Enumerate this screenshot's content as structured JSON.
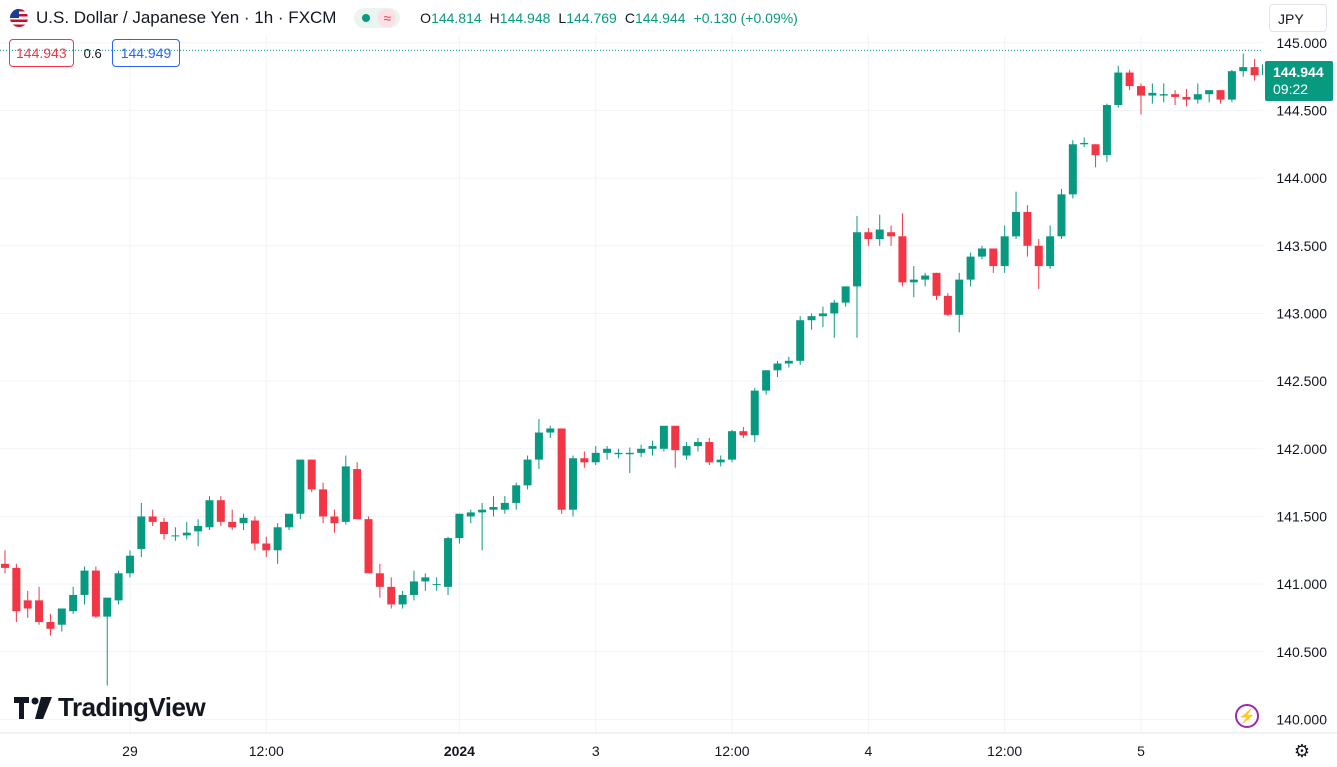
{
  "header": {
    "title": "U.S. Dollar / Japanese Yen · 1h · FXCM",
    "ohlc": [
      {
        "k": "O",
        "v": "144.814"
      },
      {
        "k": "H",
        "v": "144.948"
      },
      {
        "k": "L",
        "v": "144.769"
      },
      {
        "k": "C",
        "v": "144.944"
      },
      {
        "k": "",
        "v": "+0.130 (+0.09%)"
      }
    ],
    "status_symbol": "≈"
  },
  "quote": {
    "bid": "144.943",
    "spread": "0.6",
    "ask": "144.949"
  },
  "currency": "JPY",
  "last_price": {
    "price": "144.944",
    "countdown": "09:22"
  },
  "branding": {
    "logo_text": "TradingView"
  },
  "colors": {
    "up": "#089981",
    "down": "#f23645",
    "grid": "#f0f3fa",
    "text": "#131722"
  },
  "icons": {
    "bolt": "lightning-icon",
    "settings": "gear-icon"
  },
  "chart_data": {
    "type": "candlestick",
    "y_axis": {
      "min": 139.9,
      "max": 145.05,
      "ticks": [
        140.0,
        140.5,
        141.0,
        141.5,
        142.0,
        142.5,
        143.0,
        143.5,
        144.0,
        144.5,
        145.0
      ],
      "tick_labels": [
        "140.000",
        "140.500",
        "141.000",
        "141.500",
        "142.000",
        "142.500",
        "143.000",
        "143.500",
        "144.000",
        "144.500",
        "145.000"
      ]
    },
    "x_axis": {
      "labels": [
        {
          "bar": 11,
          "label": "29",
          "bold": false
        },
        {
          "bar": 23,
          "label": "12:00",
          "bold": false
        },
        {
          "bar": 40,
          "label": "2024",
          "bold": true
        },
        {
          "bar": 52,
          "label": "3",
          "bold": false
        },
        {
          "bar": 64,
          "label": "12:00",
          "bold": false
        },
        {
          "bar": 76,
          "label": "4",
          "bold": false
        },
        {
          "bar": 88,
          "label": "12:00",
          "bold": false
        },
        {
          "bar": 100,
          "label": "5",
          "bold": false
        }
      ]
    },
    "candles": [
      [
        141.15,
        141.25,
        141.08,
        141.12
      ],
      [
        141.12,
        141.15,
        140.72,
        140.8
      ],
      [
        140.88,
        140.95,
        140.75,
        140.82
      ],
      [
        140.88,
        140.98,
        140.7,
        140.72
      ],
      [
        140.72,
        140.78,
        140.62,
        140.67
      ],
      [
        140.7,
        140.82,
        140.65,
        140.82
      ],
      [
        140.8,
        140.98,
        140.78,
        140.92
      ],
      [
        140.92,
        141.13,
        140.85,
        141.1
      ],
      [
        141.1,
        141.13,
        140.75,
        140.76
      ],
      [
        140.76,
        140.9,
        140.25,
        140.9
      ],
      [
        140.88,
        141.1,
        140.85,
        141.08
      ],
      [
        141.08,
        141.25,
        141.05,
        141.21
      ],
      [
        141.26,
        141.6,
        141.2,
        141.5
      ],
      [
        141.5,
        141.55,
        141.43,
        141.46
      ],
      [
        141.46,
        141.49,
        141.33,
        141.37
      ],
      [
        141.36,
        141.42,
        141.32,
        141.36
      ],
      [
        141.36,
        141.46,
        141.33,
        141.38
      ],
      [
        141.39,
        141.48,
        141.28,
        141.43
      ],
      [
        141.42,
        141.65,
        141.4,
        141.62
      ],
      [
        141.62,
        141.65,
        141.43,
        141.46
      ],
      [
        141.46,
        141.55,
        141.4,
        141.42
      ],
      [
        141.45,
        141.52,
        141.4,
        141.49
      ],
      [
        141.47,
        141.5,
        141.25,
        141.3
      ],
      [
        141.3,
        141.35,
        141.2,
        141.25
      ],
      [
        141.25,
        141.45,
        141.15,
        141.42
      ],
      [
        141.42,
        141.52,
        141.4,
        141.52
      ],
      [
        141.52,
        141.92,
        141.48,
        141.92
      ],
      [
        141.92,
        141.92,
        141.68,
        141.7
      ],
      [
        141.7,
        141.75,
        141.45,
        141.5
      ],
      [
        141.5,
        141.55,
        141.38,
        141.45
      ],
      [
        141.46,
        141.95,
        141.44,
        141.87
      ],
      [
        141.85,
        141.9,
        141.48,
        141.48
      ],
      [
        141.48,
        141.5,
        141.1,
        141.08
      ],
      [
        141.08,
        141.15,
        140.9,
        140.98
      ],
      [
        140.98,
        141.05,
        140.82,
        140.85
      ],
      [
        140.85,
        140.95,
        140.82,
        140.92
      ],
      [
        140.92,
        141.1,
        140.88,
        141.02
      ],
      [
        141.02,
        141.08,
        140.95,
        141.05
      ],
      [
        141.0,
        141.05,
        140.95,
        141.0
      ],
      [
        140.98,
        141.35,
        140.92,
        141.34
      ],
      [
        141.34,
        141.52,
        141.3,
        141.52
      ],
      [
        141.5,
        141.55,
        141.45,
        141.53
      ],
      [
        141.53,
        141.6,
        141.25,
        141.55
      ],
      [
        141.55,
        141.65,
        141.5,
        141.57
      ],
      [
        141.55,
        141.65,
        141.52,
        141.6
      ],
      [
        141.6,
        141.75,
        141.55,
        141.73
      ],
      [
        141.73,
        141.95,
        141.7,
        141.92
      ],
      [
        141.92,
        142.22,
        141.85,
        142.12
      ],
      [
        142.12,
        142.17,
        142.08,
        142.15
      ],
      [
        142.15,
        142.15,
        141.52,
        141.55
      ],
      [
        141.55,
        141.95,
        141.5,
        141.93
      ],
      [
        141.93,
        141.98,
        141.86,
        141.9
      ],
      [
        141.9,
        142.02,
        141.88,
        141.97
      ],
      [
        141.97,
        142.02,
        141.92,
        142.0
      ],
      [
        141.96,
        142.0,
        141.93,
        141.97
      ],
      [
        141.96,
        142.01,
        141.82,
        141.97
      ],
      [
        141.97,
        142.03,
        141.94,
        142.0
      ],
      [
        142.0,
        142.06,
        141.95,
        142.02
      ],
      [
        142.0,
        142.16,
        141.98,
        142.17
      ],
      [
        142.17,
        142.17,
        141.86,
        141.99
      ],
      [
        141.95,
        142.05,
        141.92,
        142.02
      ],
      [
        142.02,
        142.08,
        141.98,
        142.05
      ],
      [
        142.05,
        142.08,
        141.88,
        141.9
      ],
      [
        141.9,
        141.95,
        141.87,
        141.92
      ],
      [
        141.92,
        142.14,
        141.9,
        142.13
      ],
      [
        142.13,
        142.16,
        142.08,
        142.1
      ],
      [
        142.1,
        142.45,
        142.05,
        142.43
      ],
      [
        142.43,
        142.58,
        142.4,
        142.58
      ],
      [
        142.58,
        142.65,
        142.53,
        142.63
      ],
      [
        142.63,
        142.68,
        142.6,
        142.65
      ],
      [
        142.65,
        142.98,
        142.62,
        142.95
      ],
      [
        142.95,
        143.0,
        142.88,
        142.98
      ],
      [
        142.98,
        143.05,
        142.9,
        143.0
      ],
      [
        143.0,
        143.1,
        142.82,
        143.08
      ],
      [
        143.08,
        143.2,
        143.05,
        143.2
      ],
      [
        143.2,
        143.72,
        142.82,
        143.6
      ],
      [
        143.6,
        143.63,
        143.5,
        143.55
      ],
      [
        143.55,
        143.73,
        143.5,
        143.62
      ],
      [
        143.6,
        143.65,
        143.5,
        143.57
      ],
      [
        143.57,
        143.74,
        143.2,
        143.23
      ],
      [
        143.23,
        143.35,
        143.12,
        143.25
      ],
      [
        143.25,
        143.3,
        143.2,
        143.28
      ],
      [
        143.3,
        143.3,
        143.1,
        143.13
      ],
      [
        143.13,
        143.15,
        142.98,
        142.99
      ],
      [
        142.99,
        143.3,
        142.86,
        143.25
      ],
      [
        143.25,
        143.45,
        143.2,
        143.42
      ],
      [
        143.42,
        143.5,
        143.4,
        143.48
      ],
      [
        143.48,
        143.48,
        143.3,
        143.35
      ],
      [
        143.35,
        143.65,
        143.3,
        143.57
      ],
      [
        143.57,
        143.9,
        143.55,
        143.75
      ],
      [
        143.75,
        143.8,
        143.42,
        143.5
      ],
      [
        143.5,
        143.55,
        143.18,
        143.35
      ],
      [
        143.35,
        143.65,
        143.33,
        143.57
      ],
      [
        143.57,
        143.92,
        143.55,
        143.88
      ],
      [
        143.88,
        144.28,
        143.85,
        144.25
      ],
      [
        144.25,
        144.3,
        144.23,
        144.26
      ],
      [
        144.25,
        144.25,
        144.08,
        144.17
      ],
      [
        144.17,
        144.55,
        144.12,
        144.54
      ],
      [
        144.54,
        144.83,
        144.52,
        144.78
      ],
      [
        144.78,
        144.8,
        144.65,
        144.68
      ],
      [
        144.68,
        144.7,
        144.47,
        144.61
      ],
      [
        144.61,
        144.7,
        144.55,
        144.63
      ],
      [
        144.61,
        144.7,
        144.56,
        144.62
      ],
      [
        144.62,
        144.65,
        144.54,
        144.6
      ],
      [
        144.6,
        144.66,
        144.53,
        144.58
      ],
      [
        144.58,
        144.7,
        144.55,
        144.62
      ],
      [
        144.62,
        144.64,
        144.56,
        144.65
      ],
      [
        144.65,
        144.65,
        144.55,
        144.58
      ],
      [
        144.58,
        144.8,
        144.56,
        144.79
      ],
      [
        144.79,
        144.92,
        144.75,
        144.82
      ],
      [
        144.82,
        144.88,
        144.72,
        144.76
      ],
      [
        144.76,
        144.85,
        144.7,
        144.84
      ],
      [
        144.814,
        144.948,
        144.769,
        144.944
      ]
    ]
  }
}
